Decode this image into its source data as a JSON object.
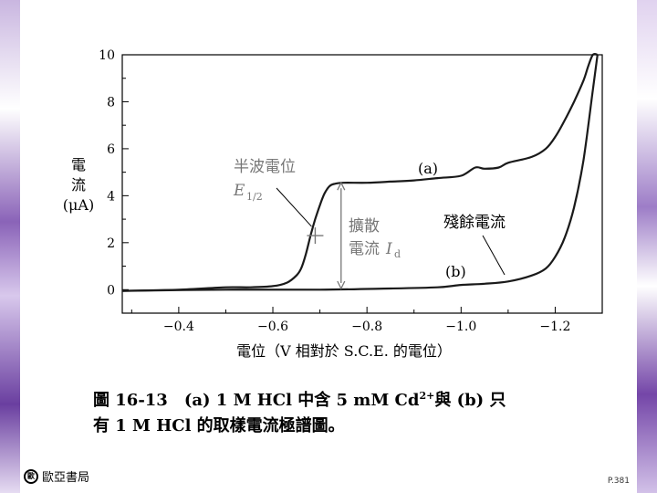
{
  "chart_data": {
    "type": "line",
    "ylabel_lines": [
      "電",
      "流",
      "(μA)"
    ],
    "xlabel": "電位（V 相對於 S.C.E. 的電位）",
    "xlim": [
      -0.28,
      -1.3
    ],
    "ylim": [
      -1,
      10
    ],
    "xticks": [
      -0.4,
      -0.6,
      -0.8,
      -1.0,
      -1.2
    ],
    "xtick_labels": [
      "−0.4",
      "−0.6",
      "−0.8",
      "−1.0",
      "−1.2"
    ],
    "yticks": [
      0,
      2,
      4,
      6,
      8,
      10
    ],
    "ytick_labels": [
      "0",
      "2",
      "4",
      "6",
      "8",
      "10"
    ],
    "series": [
      {
        "name": "(a)",
        "x": [
          -0.28,
          -0.4,
          -0.5,
          -0.55,
          -0.6,
          -0.63,
          -0.65,
          -0.66,
          -0.67,
          -0.68,
          -0.69,
          -0.7,
          -0.71,
          -0.72,
          -0.73,
          -0.75,
          -0.8,
          -0.85,
          -0.9,
          -0.95,
          -1.0,
          -1.03,
          -1.05,
          -1.08,
          -1.1,
          -1.15,
          -1.18,
          -1.2,
          -1.22,
          -1.24,
          -1.26,
          -1.27,
          -1.28,
          -1.29
        ],
        "y": [
          -0.05,
          0.0,
          0.1,
          0.1,
          0.15,
          0.3,
          0.6,
          0.9,
          1.5,
          2.3,
          3.0,
          3.6,
          4.1,
          4.4,
          4.5,
          4.55,
          4.55,
          4.6,
          4.65,
          4.75,
          4.85,
          5.2,
          5.15,
          5.2,
          5.4,
          5.65,
          6.0,
          6.5,
          7.2,
          8.0,
          8.9,
          9.5,
          10.0,
          10.0
        ]
      },
      {
        "name": "(b)",
        "x": [
          -0.28,
          -0.5,
          -0.7,
          -0.85,
          -0.95,
          -1.0,
          -1.05,
          -1.1,
          -1.15,
          -1.18,
          -1.2,
          -1.22,
          -1.24,
          -1.26,
          -1.28,
          -1.29
        ],
        "y": [
          -0.05,
          0.0,
          0.0,
          0.05,
          0.1,
          0.2,
          0.25,
          0.35,
          0.6,
          0.9,
          1.4,
          2.2,
          3.5,
          5.5,
          8.5,
          10.0
        ]
      }
    ],
    "half_wave_x": -0.69,
    "half_wave_y": 2.3,
    "diffusion_x": -0.745,
    "diffusion_range": [
      0.05,
      4.55
    ],
    "annotations": {
      "half_wave_title": "半波電位",
      "half_wave_symbol": "E",
      "half_wave_sub": "1/2",
      "diffusion_line1": "擴散",
      "diffusion_line2": "電流 ",
      "diffusion_symbol": "I",
      "diffusion_sub": "d",
      "label_a": "(a)",
      "label_b": "(b)",
      "residual": "殘餘電流"
    }
  },
  "caption": {
    "line1_prefix": "圖 16-13　(a) 1 M HCl 中含 5 mM Cd",
    "line1_sup": "2+",
    "line1_suffix": "與 (b) 只",
    "line2": "有 1 M HCl 的取樣電流極譜圖。"
  },
  "publisher": {
    "logo_text": "歐",
    "name": "歐亞書局"
  },
  "page_number": "P.381",
  "colors": {
    "curve": "#1a1a1a",
    "annotation": "#777777",
    "axis": "#000000"
  }
}
